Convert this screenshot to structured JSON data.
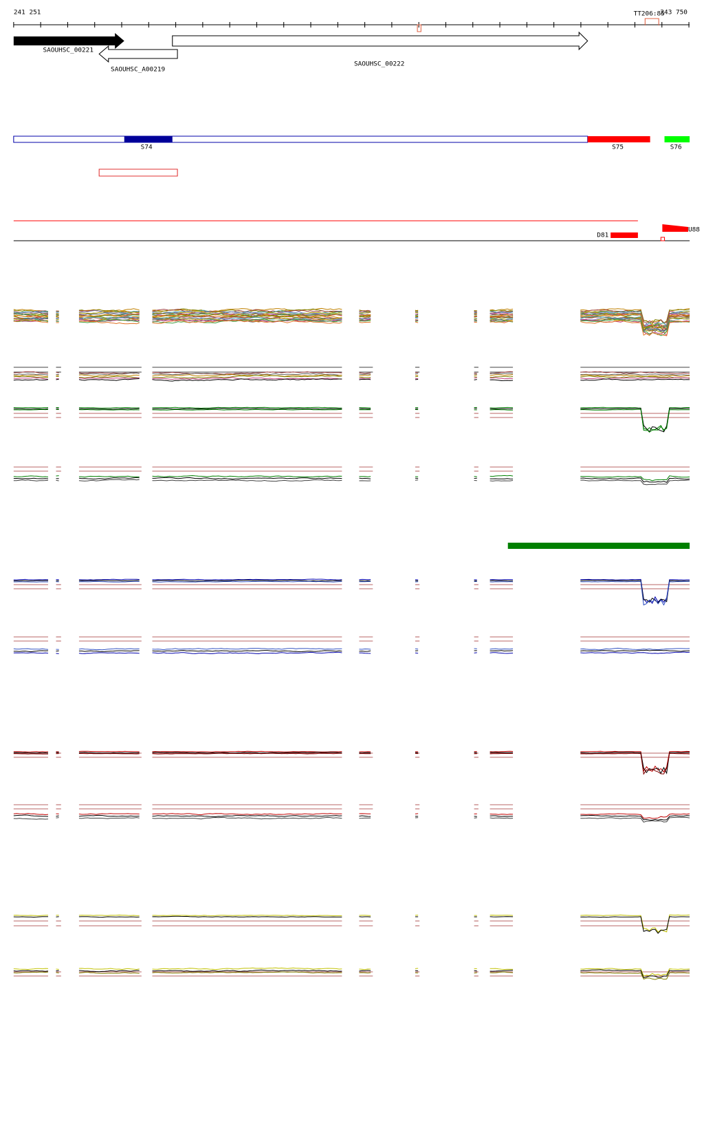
{
  "ruler": {
    "start": "241 251",
    "end": "243 750",
    "marker": "TT206:85"
  },
  "genes": [
    {
      "label": "SAOUHSC_00221"
    },
    {
      "label": "SAOUHSC_A00219"
    },
    {
      "label": "SAOUHSC_00222"
    }
  ],
  "segments": [
    "S74",
    "S75",
    "S76"
  ],
  "features": [
    "D81",
    "U88"
  ]
}
